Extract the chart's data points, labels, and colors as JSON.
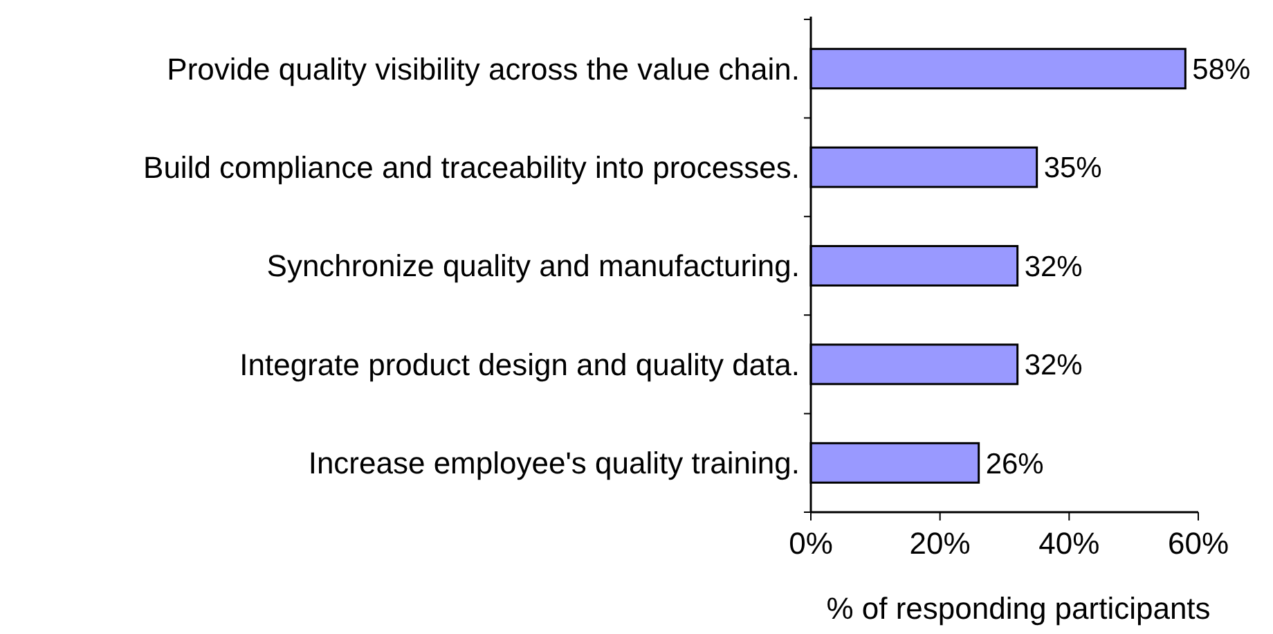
{
  "chart_data": {
    "type": "bar",
    "orientation": "horizontal",
    "xlabel": "% of responding participants",
    "categories": [
      "Provide quality visibility across the value chain.",
      "Build compliance and traceability into processes.",
      "Synchronize quality and manufacturing.",
      "Integrate product design and quality data.",
      "Increase employee's quality training."
    ],
    "values": [
      58,
      35,
      32,
      32,
      26
    ],
    "value_labels": [
      "58%",
      "35%",
      "32%",
      "32%",
      "26%"
    ],
    "color": "#9999ff",
    "xlim": [
      0,
      60
    ],
    "xticks": [
      {
        "value": 0,
        "label": "0%"
      },
      {
        "value": 20,
        "label": "20%"
      },
      {
        "value": 40,
        "label": "40%"
      },
      {
        "value": 60,
        "label": "60%"
      }
    ],
    "grid": false
  }
}
